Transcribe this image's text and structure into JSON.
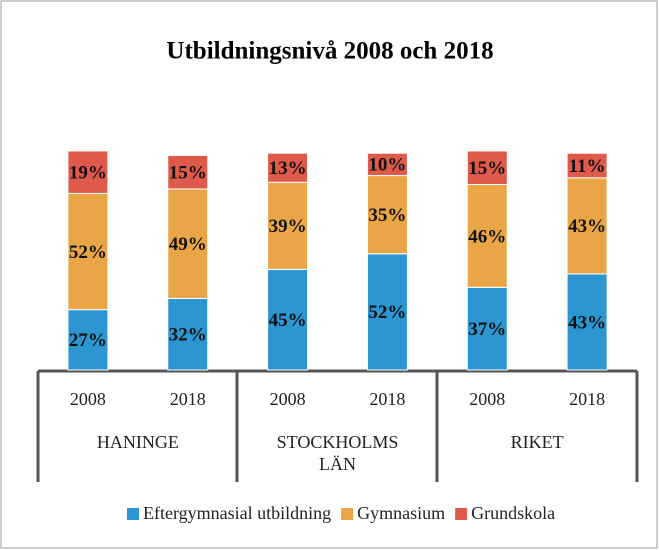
{
  "chart_data": {
    "type": "stacked_bar",
    "title": "Utbildningsnivå 2008 och 2018",
    "categories": [
      "2008",
      "2018",
      "2008",
      "2018",
      "2008",
      "2018"
    ],
    "groups": [
      "HANINGE",
      "STOCKHOLMS LÄN",
      "RIKET"
    ],
    "series": [
      {
        "name": "Eftergymnasial utbildning",
        "color": "#2b96d1",
        "values": [
          27,
          32,
          45,
          52,
          37,
          43
        ],
        "value_labels": [
          "27%",
          "32%",
          "45%",
          "52%",
          "37%",
          "43%"
        ]
      },
      {
        "name": "Gymnasium",
        "color": "#e9a546",
        "values": [
          52,
          49,
          39,
          35,
          46,
          43
        ],
        "value_labels": [
          "52%",
          "49%",
          "39%",
          "35%",
          "46%",
          "43%"
        ]
      },
      {
        "name": "Grundskola",
        "color": "#e05a4b",
        "values": [
          19,
          15,
          13,
          10,
          15,
          11
        ],
        "value_labels": [
          "19%",
          "15%",
          "13%",
          "10%",
          "15%",
          "11%"
        ]
      }
    ],
    "legend": "bottom"
  }
}
